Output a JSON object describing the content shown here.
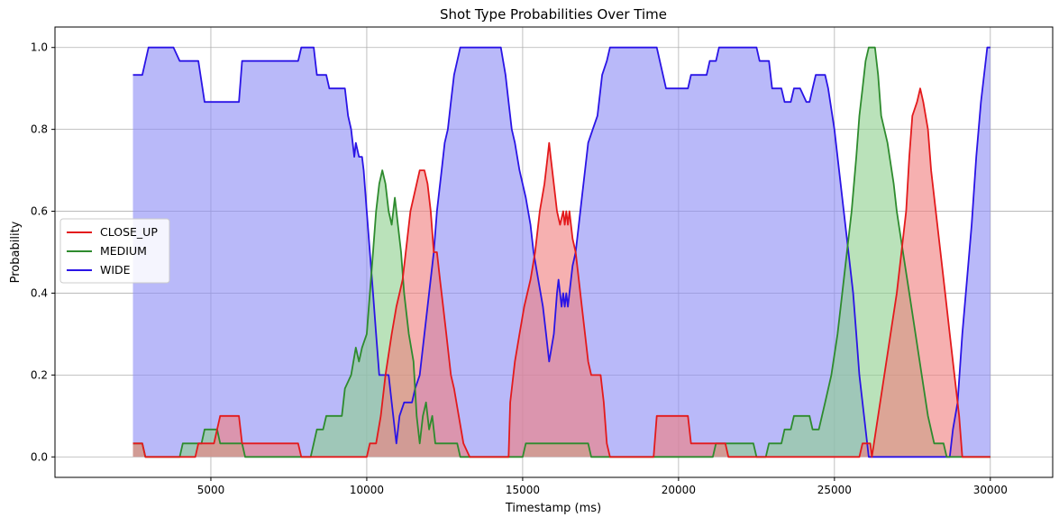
{
  "chart_data": {
    "type": "area",
    "title": "Shot Type Probabilities Over Time",
    "xlabel": "Timestamp (ms)",
    "ylabel": "Probability",
    "xlim": [
      0,
      32000
    ],
    "ylim": [
      -0.05,
      1.05
    ],
    "xticks": [
      5000,
      10000,
      15000,
      20000,
      25000,
      30000
    ],
    "yticks": [
      0.0,
      0.2,
      0.4,
      0.6,
      0.8,
      1.0
    ],
    "ytick_labels": [
      "0.0",
      "0.2",
      "0.4",
      "0.6",
      "0.8",
      "1.0"
    ],
    "grid": true,
    "legend_position": "center-left",
    "series": [
      {
        "name": "CLOSE_UP",
        "color": "#e31a1c",
        "fill": "#f08080",
        "points": [
          [
            2500,
            0.033
          ],
          [
            2800,
            0.033
          ],
          [
            2900,
            0
          ],
          [
            4500,
            0
          ],
          [
            4600,
            0.033
          ],
          [
            5100,
            0.033
          ],
          [
            5200,
            0.067
          ],
          [
            5300,
            0.1
          ],
          [
            5900,
            0.1
          ],
          [
            6000,
            0.033
          ],
          [
            7800,
            0.033
          ],
          [
            7900,
            0
          ],
          [
            10000,
            0
          ],
          [
            10100,
            0.033
          ],
          [
            10300,
            0.033
          ],
          [
            10450,
            0.1
          ],
          [
            10600,
            0.2
          ],
          [
            10800,
            0.3
          ],
          [
            10950,
            0.367
          ],
          [
            11050,
            0.4
          ],
          [
            11150,
            0.433
          ],
          [
            11250,
            0.5
          ],
          [
            11400,
            0.6
          ],
          [
            11600,
            0.667
          ],
          [
            11700,
            0.7
          ],
          [
            11850,
            0.7
          ],
          [
            11950,
            0.667
          ],
          [
            12050,
            0.6
          ],
          [
            12150,
            0.5
          ],
          [
            12250,
            0.5
          ],
          [
            12350,
            0.433
          ],
          [
            12450,
            0.367
          ],
          [
            12550,
            0.3
          ],
          [
            12700,
            0.2
          ],
          [
            12800,
            0.167
          ],
          [
            12950,
            0.1
          ],
          [
            13100,
            0.033
          ],
          [
            13300,
            0
          ],
          [
            14550,
            0
          ],
          [
            14600,
            0.133
          ],
          [
            14750,
            0.233
          ],
          [
            14900,
            0.3
          ],
          [
            15050,
            0.367
          ],
          [
            15250,
            0.433
          ],
          [
            15400,
            0.5
          ],
          [
            15550,
            0.6
          ],
          [
            15700,
            0.667
          ],
          [
            15800,
            0.733
          ],
          [
            15850,
            0.767
          ],
          [
            15900,
            0.733
          ],
          [
            16000,
            0.667
          ],
          [
            16100,
            0.6
          ],
          [
            16200,
            0.567
          ],
          [
            16300,
            0.6
          ],
          [
            16350,
            0.567
          ],
          [
            16400,
            0.6
          ],
          [
            16450,
            0.567
          ],
          [
            16500,
            0.6
          ],
          [
            16600,
            0.533
          ],
          [
            16700,
            0.5
          ],
          [
            16800,
            0.433
          ],
          [
            16900,
            0.367
          ],
          [
            17000,
            0.3
          ],
          [
            17100,
            0.233
          ],
          [
            17200,
            0.2
          ],
          [
            17500,
            0.2
          ],
          [
            17600,
            0.133
          ],
          [
            17700,
            0.033
          ],
          [
            17800,
            0
          ],
          [
            19200,
            0
          ],
          [
            19300,
            0.1
          ],
          [
            20300,
            0.1
          ],
          [
            20400,
            0.033
          ],
          [
            21500,
            0.033
          ],
          [
            21600,
            0
          ],
          [
            25800,
            0
          ],
          [
            25900,
            0.033
          ],
          [
            26150,
            0.033
          ],
          [
            26200,
            0
          ],
          [
            26400,
            0.1
          ],
          [
            26600,
            0.2
          ],
          [
            26800,
            0.3
          ],
          [
            27000,
            0.4
          ],
          [
            27150,
            0.5
          ],
          [
            27300,
            0.6
          ],
          [
            27400,
            0.733
          ],
          [
            27500,
            0.833
          ],
          [
            27650,
            0.867
          ],
          [
            27750,
            0.9
          ],
          [
            27850,
            0.867
          ],
          [
            28000,
            0.8
          ],
          [
            28100,
            0.7
          ],
          [
            28250,
            0.6
          ],
          [
            28400,
            0.5
          ],
          [
            28550,
            0.4
          ],
          [
            28700,
            0.3
          ],
          [
            28850,
            0.2
          ],
          [
            29000,
            0.1
          ],
          [
            29100,
            0
          ],
          [
            30000,
            0
          ]
        ]
      },
      {
        "name": "MEDIUM",
        "color": "#2e8b2e",
        "fill": "#90d090",
        "points": [
          [
            2500,
            0.033
          ],
          [
            2800,
            0.033
          ],
          [
            2900,
            0
          ],
          [
            4000,
            0
          ],
          [
            4100,
            0.033
          ],
          [
            4700,
            0.033
          ],
          [
            4800,
            0.067
          ],
          [
            5200,
            0.067
          ],
          [
            5300,
            0.033
          ],
          [
            6000,
            0.033
          ],
          [
            6100,
            0
          ],
          [
            8200,
            0
          ],
          [
            8300,
            0.033
          ],
          [
            8400,
            0.067
          ],
          [
            8600,
            0.067
          ],
          [
            8700,
            0.1
          ],
          [
            9200,
            0.1
          ],
          [
            9300,
            0.167
          ],
          [
            9500,
            0.2
          ],
          [
            9650,
            0.267
          ],
          [
            9750,
            0.233
          ],
          [
            9850,
            0.267
          ],
          [
            10000,
            0.3
          ],
          [
            10100,
            0.4
          ],
          [
            10200,
            0.5
          ],
          [
            10300,
            0.6
          ],
          [
            10400,
            0.667
          ],
          [
            10500,
            0.7
          ],
          [
            10600,
            0.667
          ],
          [
            10700,
            0.6
          ],
          [
            10800,
            0.567
          ],
          [
            10900,
            0.633
          ],
          [
            11000,
            0.567
          ],
          [
            11100,
            0.5
          ],
          [
            11200,
            0.4
          ],
          [
            11350,
            0.3
          ],
          [
            11500,
            0.233
          ],
          [
            11600,
            0.1
          ],
          [
            11700,
            0.033
          ],
          [
            11800,
            0.1
          ],
          [
            11900,
            0.133
          ],
          [
            12000,
            0.067
          ],
          [
            12100,
            0.1
          ],
          [
            12200,
            0.033
          ],
          [
            12900,
            0.033
          ],
          [
            13000,
            0
          ],
          [
            15000,
            0
          ],
          [
            15100,
            0.033
          ],
          [
            17100,
            0.033
          ],
          [
            17200,
            0
          ],
          [
            21100,
            0
          ],
          [
            21200,
            0.033
          ],
          [
            22400,
            0.033
          ],
          [
            22500,
            0
          ],
          [
            22800,
            0
          ],
          [
            22900,
            0.033
          ],
          [
            23300,
            0.033
          ],
          [
            23400,
            0.067
          ],
          [
            23600,
            0.067
          ],
          [
            23700,
            0.1
          ],
          [
            24200,
            0.1
          ],
          [
            24300,
            0.067
          ],
          [
            24500,
            0.067
          ],
          [
            24700,
            0.133
          ],
          [
            24900,
            0.2
          ],
          [
            25100,
            0.3
          ],
          [
            25250,
            0.4
          ],
          [
            25400,
            0.5
          ],
          [
            25550,
            0.6
          ],
          [
            25700,
            0.733
          ],
          [
            25800,
            0.833
          ],
          [
            25900,
            0.9
          ],
          [
            26000,
            0.967
          ],
          [
            26100,
            1.0
          ],
          [
            26300,
            1.0
          ],
          [
            26400,
            0.933
          ],
          [
            26500,
            0.833
          ],
          [
            26700,
            0.767
          ],
          [
            26900,
            0.667
          ],
          [
            27000,
            0.6
          ],
          [
            27200,
            0.5
          ],
          [
            27400,
            0.4
          ],
          [
            27600,
            0.3
          ],
          [
            27800,
            0.2
          ],
          [
            28000,
            0.1
          ],
          [
            28200,
            0.033
          ],
          [
            28500,
            0.033
          ],
          [
            28600,
            0
          ],
          [
            30000,
            0
          ]
        ]
      },
      {
        "name": "WIDE",
        "color": "#2a14e6",
        "fill": "#8e8ef5",
        "points": [
          [
            2500,
            0.933
          ],
          [
            2800,
            0.933
          ],
          [
            3000,
            1.0
          ],
          [
            3800,
            1.0
          ],
          [
            4000,
            0.967
          ],
          [
            4600,
            0.967
          ],
          [
            4800,
            0.867
          ],
          [
            5900,
            0.867
          ],
          [
            6000,
            0.967
          ],
          [
            7800,
            0.967
          ],
          [
            7900,
            1.0
          ],
          [
            8300,
            1.0
          ],
          [
            8400,
            0.933
          ],
          [
            8700,
            0.933
          ],
          [
            8800,
            0.9
          ],
          [
            9300,
            0.9
          ],
          [
            9400,
            0.833
          ],
          [
            9500,
            0.8
          ],
          [
            9600,
            0.733
          ],
          [
            9650,
            0.767
          ],
          [
            9750,
            0.733
          ],
          [
            9850,
            0.733
          ],
          [
            9900,
            0.7
          ],
          [
            10000,
            0.6
          ],
          [
            10100,
            0.5
          ],
          [
            10200,
            0.4
          ],
          [
            10300,
            0.3
          ],
          [
            10400,
            0.2
          ],
          [
            10700,
            0.2
          ],
          [
            10800,
            0.133
          ],
          [
            10950,
            0.033
          ],
          [
            11050,
            0.1
          ],
          [
            11200,
            0.133
          ],
          [
            11450,
            0.133
          ],
          [
            11550,
            0.167
          ],
          [
            11700,
            0.2
          ],
          [
            11850,
            0.3
          ],
          [
            12000,
            0.4
          ],
          [
            12150,
            0.5
          ],
          [
            12250,
            0.6
          ],
          [
            12400,
            0.7
          ],
          [
            12500,
            0.767
          ],
          [
            12600,
            0.8
          ],
          [
            12700,
            0.867
          ],
          [
            12800,
            0.933
          ],
          [
            12900,
            0.967
          ],
          [
            13000,
            1.0
          ],
          [
            14300,
            1.0
          ],
          [
            14450,
            0.933
          ],
          [
            14550,
            0.867
          ],
          [
            14650,
            0.8
          ],
          [
            14750,
            0.767
          ],
          [
            14900,
            0.7
          ],
          [
            15100,
            0.633
          ],
          [
            15250,
            0.567
          ],
          [
            15350,
            0.5
          ],
          [
            15500,
            0.433
          ],
          [
            15650,
            0.367
          ],
          [
            15750,
            0.3
          ],
          [
            15850,
            0.233
          ],
          [
            16000,
            0.3
          ],
          [
            16100,
            0.4
          ],
          [
            16150,
            0.433
          ],
          [
            16200,
            0.4
          ],
          [
            16250,
            0.367
          ],
          [
            16300,
            0.4
          ],
          [
            16350,
            0.367
          ],
          [
            16400,
            0.4
          ],
          [
            16450,
            0.367
          ],
          [
            16500,
            0.4
          ],
          [
            16600,
            0.467
          ],
          [
            16700,
            0.5
          ],
          [
            16800,
            0.567
          ],
          [
            16900,
            0.633
          ],
          [
            17000,
            0.7
          ],
          [
            17100,
            0.767
          ],
          [
            17250,
            0.8
          ],
          [
            17400,
            0.833
          ],
          [
            17550,
            0.933
          ],
          [
            17700,
            0.967
          ],
          [
            17800,
            1.0
          ],
          [
            19300,
            1.0
          ],
          [
            19500,
            0.933
          ],
          [
            19600,
            0.9
          ],
          [
            20300,
            0.9
          ],
          [
            20400,
            0.933
          ],
          [
            20900,
            0.933
          ],
          [
            21000,
            0.967
          ],
          [
            21200,
            0.967
          ],
          [
            21300,
            1.0
          ],
          [
            22500,
            1.0
          ],
          [
            22600,
            0.967
          ],
          [
            22900,
            0.967
          ],
          [
            23000,
            0.9
          ],
          [
            23300,
            0.9
          ],
          [
            23400,
            0.867
          ],
          [
            23600,
            0.867
          ],
          [
            23700,
            0.9
          ],
          [
            23900,
            0.9
          ],
          [
            24100,
            0.867
          ],
          [
            24200,
            0.867
          ],
          [
            24300,
            0.9
          ],
          [
            24400,
            0.933
          ],
          [
            24700,
            0.933
          ],
          [
            24800,
            0.9
          ],
          [
            25000,
            0.8
          ],
          [
            25150,
            0.7
          ],
          [
            25300,
            0.6
          ],
          [
            25450,
            0.5
          ],
          [
            25600,
            0.4
          ],
          [
            25700,
            0.3
          ],
          [
            25800,
            0.2
          ],
          [
            25950,
            0.1
          ],
          [
            26100,
            0
          ],
          [
            28700,
            0
          ],
          [
            28800,
            0.067
          ],
          [
            28950,
            0.133
          ],
          [
            29100,
            0.3
          ],
          [
            29250,
            0.433
          ],
          [
            29400,
            0.567
          ],
          [
            29550,
            0.733
          ],
          [
            29700,
            0.867
          ],
          [
            29900,
            1.0
          ],
          [
            30000,
            1.0
          ]
        ]
      }
    ]
  }
}
